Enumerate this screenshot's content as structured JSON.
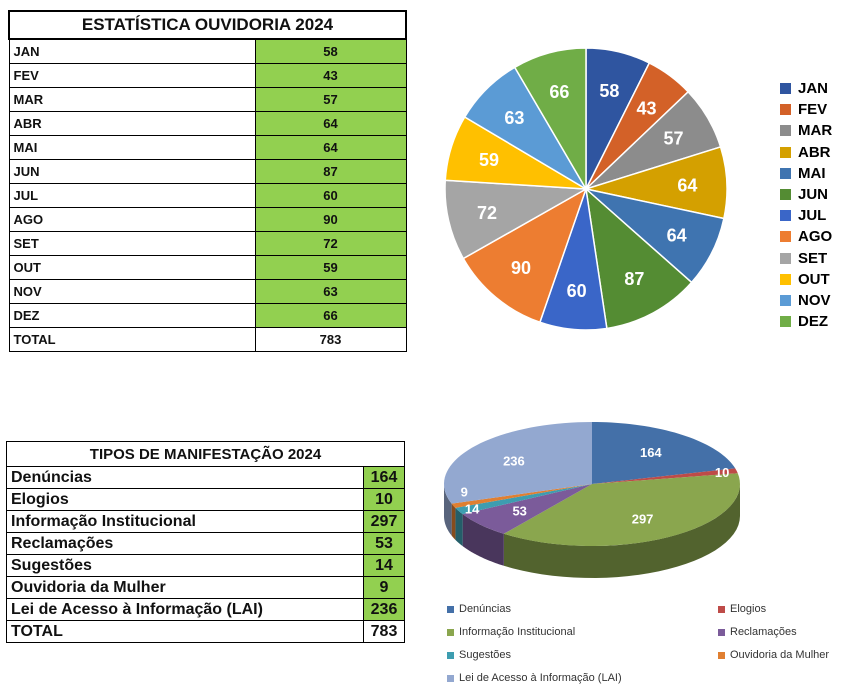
{
  "chart_data": [
    {
      "type": "table",
      "title": "ESTATÍSTICA OUVIDORIA 2024",
      "categories": [
        "JAN",
        "FEV",
        "MAR",
        "ABR",
        "MAI",
        "JUN",
        "JUL",
        "AGO",
        "SET",
        "OUT",
        "NOV",
        "DEZ"
      ],
      "values": [
        58,
        43,
        57,
        64,
        64,
        87,
        60,
        90,
        72,
        59,
        63,
        66
      ],
      "total_label": "TOTAL",
      "total": 783,
      "value_cell_color": "#92d050"
    },
    {
      "type": "pie",
      "categories": [
        "JAN",
        "FEV",
        "MAR",
        "ABR",
        "MAI",
        "JUN",
        "JUL",
        "AGO",
        "SET",
        "OUT",
        "NOV",
        "DEZ"
      ],
      "values": [
        58,
        43,
        57,
        64,
        64,
        87,
        60,
        90,
        72,
        59,
        63,
        66
      ],
      "colors": [
        "#2f55a0",
        "#d36128",
        "#8c8c8c",
        "#d4a000",
        "#3f74b0",
        "#548c33",
        "#3a66c8",
        "#ed7d31",
        "#a5a5a5",
        "#ffc000",
        "#5b9bd5",
        "#70ad47"
      ],
      "legend": "right"
    },
    {
      "type": "table",
      "title": "TIPOS DE MANIFESTAÇÃO 2024",
      "categories": [
        "Denúncias",
        "Elogios",
        "Informação Institucional",
        "Reclamações",
        "Sugestões",
        "Ouvidoria da Mulher",
        "Lei de Acesso à Informação (LAI)"
      ],
      "values": [
        164,
        10,
        297,
        53,
        14,
        9,
        236
      ],
      "total_label": "TOTAL",
      "total": 783
    },
    {
      "type": "pie",
      "style": "3d",
      "categories": [
        "Denúncias",
        "Elogios",
        "Informação Institucional",
        "Reclamações",
        "Sugestões",
        "Ouvidoria da Mulher",
        "Lei de Acesso à Informação (LAI)"
      ],
      "values": [
        164,
        10,
        297,
        53,
        14,
        9,
        236
      ],
      "colors": [
        "#4470a8",
        "#be4b48",
        "#8aa64e",
        "#7b5b9a",
        "#3d9db0",
        "#e07f31",
        "#93a8d0"
      ],
      "legend": "bottom"
    }
  ]
}
